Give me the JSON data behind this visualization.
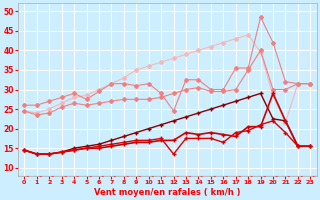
{
  "xlabel": "Vent moyen/en rafales ( km/h )",
  "bg_color": "#cceeff",
  "grid_color": "#ffffff",
  "x": [
    0,
    1,
    2,
    3,
    4,
    5,
    6,
    7,
    8,
    9,
    10,
    11,
    12,
    13,
    14,
    15,
    16,
    17,
    18,
    19,
    20,
    21,
    22,
    23
  ],
  "line_pale1": [
    24.5,
    23.5,
    24.0,
    25.5,
    26.5,
    26.0,
    26.5,
    27.0,
    27.5,
    27.5,
    27.5,
    28.0,
    29.0,
    30.0,
    30.5,
    29.5,
    29.5,
    30.0,
    35.0,
    40.0,
    30.0,
    30.0,
    31.5,
    31.5
  ],
  "line_pale2": [
    26.0,
    26.0,
    27.0,
    28.0,
    29.0,
    27.5,
    29.5,
    31.5,
    31.5,
    31.0,
    31.5,
    29.0,
    24.5,
    32.5,
    32.5,
    30.0,
    30.0,
    35.5,
    35.5,
    48.5,
    42.0,
    32.0,
    31.5,
    31.5
  ],
  "line_pale3": [
    24.5,
    24.0,
    25.0,
    26.5,
    28.0,
    28.5,
    30.0,
    31.5,
    33.0,
    35.0,
    36.0,
    37.0,
    38.0,
    39.0,
    40.0,
    41.0,
    42.0,
    43.0,
    44.0,
    39.5,
    28.5,
    21.5,
    31.5,
    31.5
  ],
  "line_dark1": [
    14.5,
    13.5,
    13.5,
    14.0,
    14.5,
    15.0,
    15.5,
    16.0,
    16.5,
    17.0,
    17.0,
    17.5,
    13.5,
    17.5,
    17.5,
    17.5,
    16.5,
    19.0,
    19.5,
    21.0,
    22.0,
    19.0,
    15.5,
    15.5
  ],
  "line_dark2": [
    14.5,
    13.5,
    13.5,
    14.0,
    14.5,
    15.0,
    15.0,
    15.5,
    16.0,
    16.5,
    16.5,
    17.0,
    17.0,
    19.0,
    18.5,
    19.0,
    18.5,
    18.0,
    20.5,
    20.5,
    29.0,
    22.0,
    15.5,
    15.5
  ],
  "line_dark3": [
    14.5,
    13.5,
    13.5,
    14.0,
    15.0,
    15.5,
    16.0,
    17.0,
    18.0,
    19.0,
    20.0,
    21.0,
    22.0,
    23.0,
    24.0,
    25.0,
    26.0,
    27.0,
    28.0,
    29.0,
    22.5,
    22.0,
    15.5,
    15.5
  ],
  "line_arrow": [
    7.5,
    7.5,
    7.5,
    7.5,
    7.5,
    7.5,
    7.5,
    7.5,
    7.5,
    7.5,
    7.5,
    7.5,
    7.5,
    7.5,
    7.5,
    7.5,
    7.5,
    7.5,
    7.5,
    7.5,
    7.5,
    7.5,
    7.5,
    7.5
  ],
  "color_pale1": "#f5b8b8",
  "color_pale2": "#f08080",
  "color_pale3": "#f08080",
  "color_dark1": "#dd0000",
  "color_dark2": "#cc0000",
  "color_dark3": "#880000",
  "color_arrow": "#ff3333",
  "ylim_min": 8,
  "ylim_max": 52,
  "yticks": [
    10,
    15,
    20,
    25,
    30,
    35,
    40,
    45,
    50
  ],
  "xticks": [
    0,
    1,
    2,
    3,
    4,
    5,
    6,
    7,
    8,
    9,
    10,
    11,
    12,
    13,
    14,
    15,
    16,
    17,
    18,
    19,
    20,
    21,
    22,
    23
  ]
}
